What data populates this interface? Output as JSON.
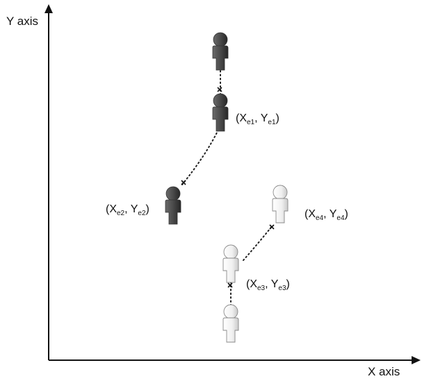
{
  "axes": {
    "y_label": "Y axis",
    "x_label": "X axis"
  },
  "people": [
    {
      "id": "dark-1",
      "shade": "dark"
    },
    {
      "id": "dark-2",
      "shade": "dark"
    },
    {
      "id": "dark-3",
      "shade": "dark"
    },
    {
      "id": "light-1",
      "shade": "light"
    },
    {
      "id": "light-2",
      "shade": "light"
    },
    {
      "id": "light-3",
      "shade": "light"
    }
  ],
  "coordinates": [
    {
      "id": "e1",
      "x_sym": "X",
      "x_sub": "e1",
      "sep": ", ",
      "y_sym": "Y",
      "y_sub": "e1"
    },
    {
      "id": "e2",
      "x_sym": "X",
      "x_sub": "e2",
      "sep": ", ",
      "y_sym": "Y",
      "y_sub": "e2"
    },
    {
      "id": "e3",
      "x_sym": "X",
      "x_sub": "e3",
      "sep": ", ",
      "y_sym": "Y",
      "y_sub": "e3"
    },
    {
      "id": "e4",
      "x_sym": "X",
      "x_sub": "e4",
      "sep": ", ",
      "y_sym": "Y",
      "y_sub": "e4"
    }
  ],
  "colors": {
    "dark_figure": "#4a4a4a",
    "dark_figure_shade": "#2a2a2a",
    "light_figure": "#f2f2f2",
    "light_figure_outline": "#9a9a9a",
    "path": "#222222"
  }
}
